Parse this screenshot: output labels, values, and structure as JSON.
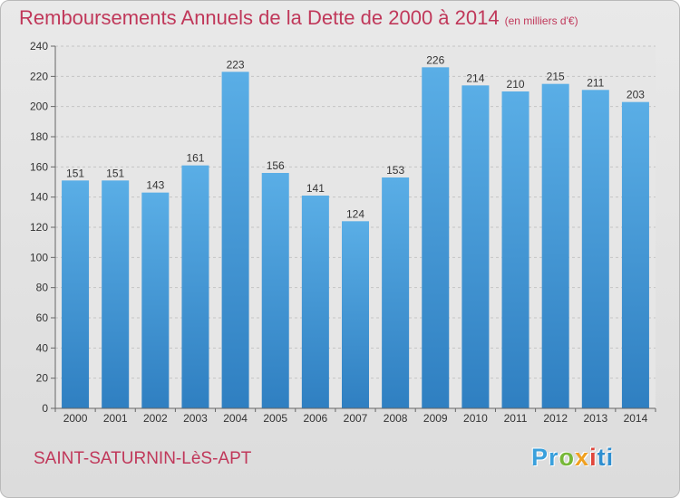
{
  "title": "Remboursements Annuels de la Dette de 2000 à 2014",
  "unit_note": "(en milliers d'€)",
  "location": "SAINT-SATURNIN-LèS-APT",
  "brand": {
    "name": "Proxiti",
    "letters": [
      "Pr",
      "o",
      "x",
      "i",
      "ti"
    ],
    "colors": [
      "#3aa0dc",
      "#77b838",
      "#f0a020",
      "#e0473c",
      "#2f8fd0"
    ]
  },
  "colors": {
    "bar_top": "#5aaee6",
    "bar_bottom": "#2f7fc1",
    "title": "#c0385a",
    "plot_background": "#e6e6e6"
  },
  "chart_data": {
    "type": "bar",
    "title": "Remboursements Annuels de la Dette de 2000 à 2014",
    "xlabel": "",
    "ylabel": "",
    "ylim": [
      0,
      240
    ],
    "yticks": [
      0,
      20,
      40,
      60,
      80,
      100,
      120,
      140,
      160,
      180,
      200,
      220,
      240
    ],
    "grid": "horizontal dashed",
    "categories": [
      "2000",
      "2001",
      "2002",
      "2003",
      "2004",
      "2005",
      "2006",
      "2007",
      "2008",
      "2009",
      "2010",
      "2011",
      "2012",
      "2013",
      "2014"
    ],
    "values": [
      151,
      151,
      143,
      161,
      223,
      156,
      141,
      124,
      153,
      226,
      214,
      210,
      215,
      211,
      203
    ]
  }
}
